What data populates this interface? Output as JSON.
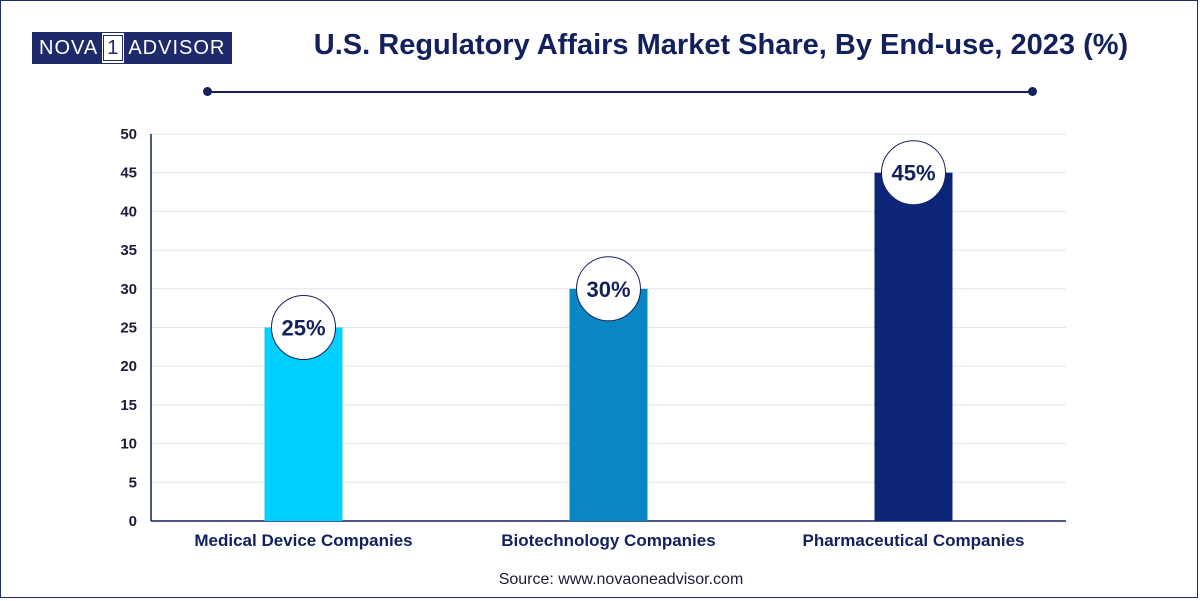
{
  "logo": {
    "part1": "NOVA",
    "part2": "1",
    "part3": "ADVISOR"
  },
  "title": "U.S. Regulatory Affairs Market Share, By End-use, 2023 (%)",
  "source": "Source: www.novaoneadvisor.com",
  "colors": {
    "title": "#12205c",
    "grid": "#e6e6e6",
    "axis": "#12205c"
  },
  "chart_data": {
    "type": "bar",
    "categories": [
      "Medical Device Companies",
      "Biotechnology Companies",
      "Pharmaceutical Companies"
    ],
    "values": [
      25,
      30,
      45
    ],
    "data_labels": [
      "25%",
      "30%",
      "45%"
    ],
    "bar_colors": [
      "#00cfff",
      "#0a86c4",
      "#0c2579"
    ],
    "ylim": [
      0,
      50
    ],
    "yticks": [
      "0",
      "5",
      "10",
      "15",
      "20",
      "25",
      "30",
      "35",
      "40",
      "45",
      "50"
    ],
    "grid": true,
    "title": "U.S. Regulatory Affairs Market Share, By End-use, 2023 (%)",
    "xlabel": "",
    "ylabel": ""
  }
}
